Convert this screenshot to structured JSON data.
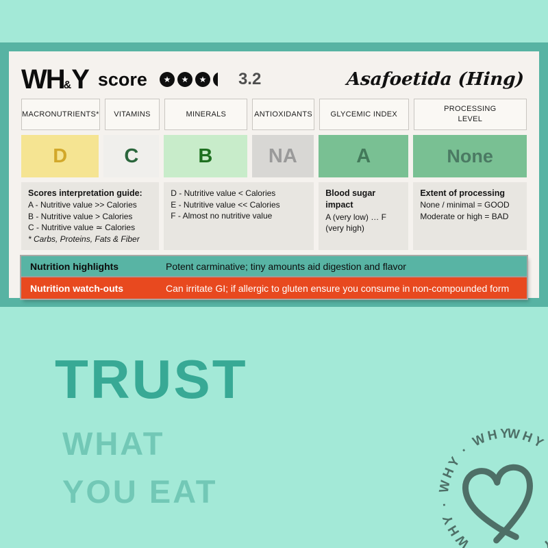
{
  "card": {
    "brand": {
      "wh": "WH",
      "amp": "&",
      "y": "Y",
      "score_word": "score"
    },
    "rating": {
      "stars_full": 3,
      "stars_partial": true,
      "value": "3.2"
    },
    "product_name": "Asafoetida (Hing)",
    "columns": [
      {
        "label": "MACRONUTRIENTS*",
        "grade": "D"
      },
      {
        "label": "VITAMINS",
        "grade": "C"
      },
      {
        "label": "MINERALS",
        "grade": "B"
      },
      {
        "label": "ANTIOXIDANTS",
        "grade": "NA"
      },
      {
        "label": "GLYCEMIC INDEX",
        "grade": "A"
      },
      {
        "label": "PROCESSING LEVEL",
        "grade": "None"
      }
    ],
    "guide": {
      "title": "Scores interpretation guide:",
      "left_lines": [
        "A - Nutritive value >> Calories",
        "B - Nutritive value > Calories",
        "C - Nutritive value ≃ Calories"
      ],
      "footnote": "* Carbs, Proteins, Fats & Fiber",
      "mid_lines": [
        "D - Nutritive value < Calories",
        "E - Nutritive value << Calories",
        "F - Almost no nutritive value"
      ],
      "glycemic_title": "Blood sugar impact",
      "glycemic_text": "A (very low) … F (very high)",
      "processing_title": "Extent of processing",
      "processing_lines": [
        "None / minimal = GOOD",
        "Moderate or high = BAD"
      ]
    },
    "highlights": {
      "label": "Nutrition highlights",
      "text": "Potent carminative; tiny amounts aid digestion and flavor"
    },
    "watchouts": {
      "label": "Nutrition watch-outs",
      "text": "Can irritate GI; if allergic to gluten ensure you consume in non-compounded form"
    }
  },
  "footer": {
    "line1": "TRUST",
    "line2": "WHAT",
    "line3": "YOU EAT",
    "logo_word": "WHY"
  },
  "colors": {
    "mint_background": "#a3e9d7",
    "teal_frame": "#57b3a3",
    "card_background": "#f5f2ee",
    "orange_watchout": "#e8491f",
    "grade_d": "#f5e492",
    "grade_c": "#f0efec",
    "grade_b": "#c8ecca",
    "grade_na": "#d8d7d4",
    "grade_a": "#79c093",
    "slogan_dark_teal": "#38a995",
    "slogan_light_teal": "#72c8b6",
    "logo_slate": "#4e6f67"
  }
}
